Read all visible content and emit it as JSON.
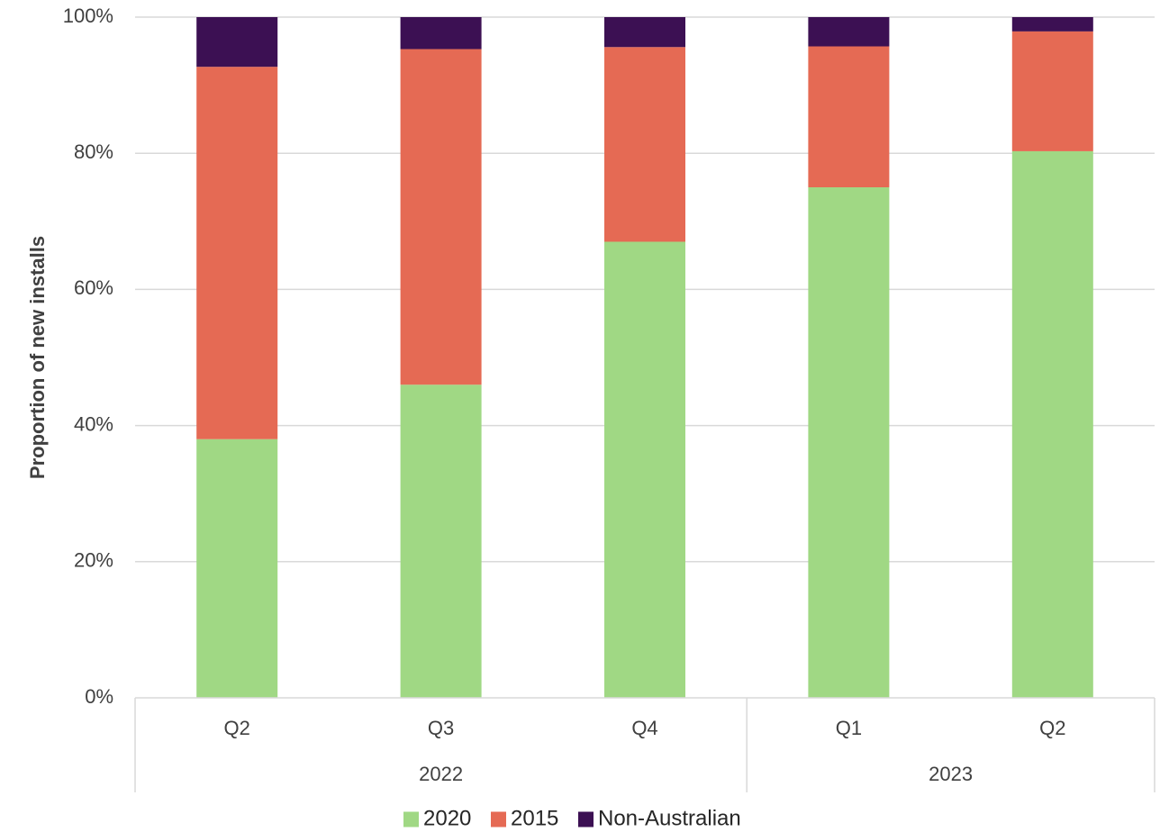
{
  "chart_data": {
    "type": "bar",
    "stacked": true,
    "ylabel": "Proportion of new installs",
    "ylim": [
      0,
      100
    ],
    "y_ticks": [
      "0%",
      "20%",
      "40%",
      "60%",
      "80%",
      "100%"
    ],
    "y_tick_values": [
      0,
      20,
      40,
      60,
      80,
      100
    ],
    "categories": [
      "Q2",
      "Q3",
      "Q4",
      "Q1",
      "Q2"
    ],
    "groups": [
      {
        "label": "2022",
        "span": 3
      },
      {
        "label": "2023",
        "span": 2
      }
    ],
    "series": [
      {
        "name": "2020",
        "color": "#a0d884",
        "values": [
          38,
          46,
          67,
          75,
          80.3
        ]
      },
      {
        "name": "2015",
        "color": "#e56a54",
        "values": [
          54.7,
          49.3,
          28.6,
          20.7,
          17.6
        ]
      },
      {
        "name": "Non-Australian",
        "color": "#3c1053",
        "values": [
          7.3,
          4.7,
          4.4,
          4.3,
          2.1
        ]
      }
    ],
    "grid": true,
    "legend_position": "bottom"
  }
}
